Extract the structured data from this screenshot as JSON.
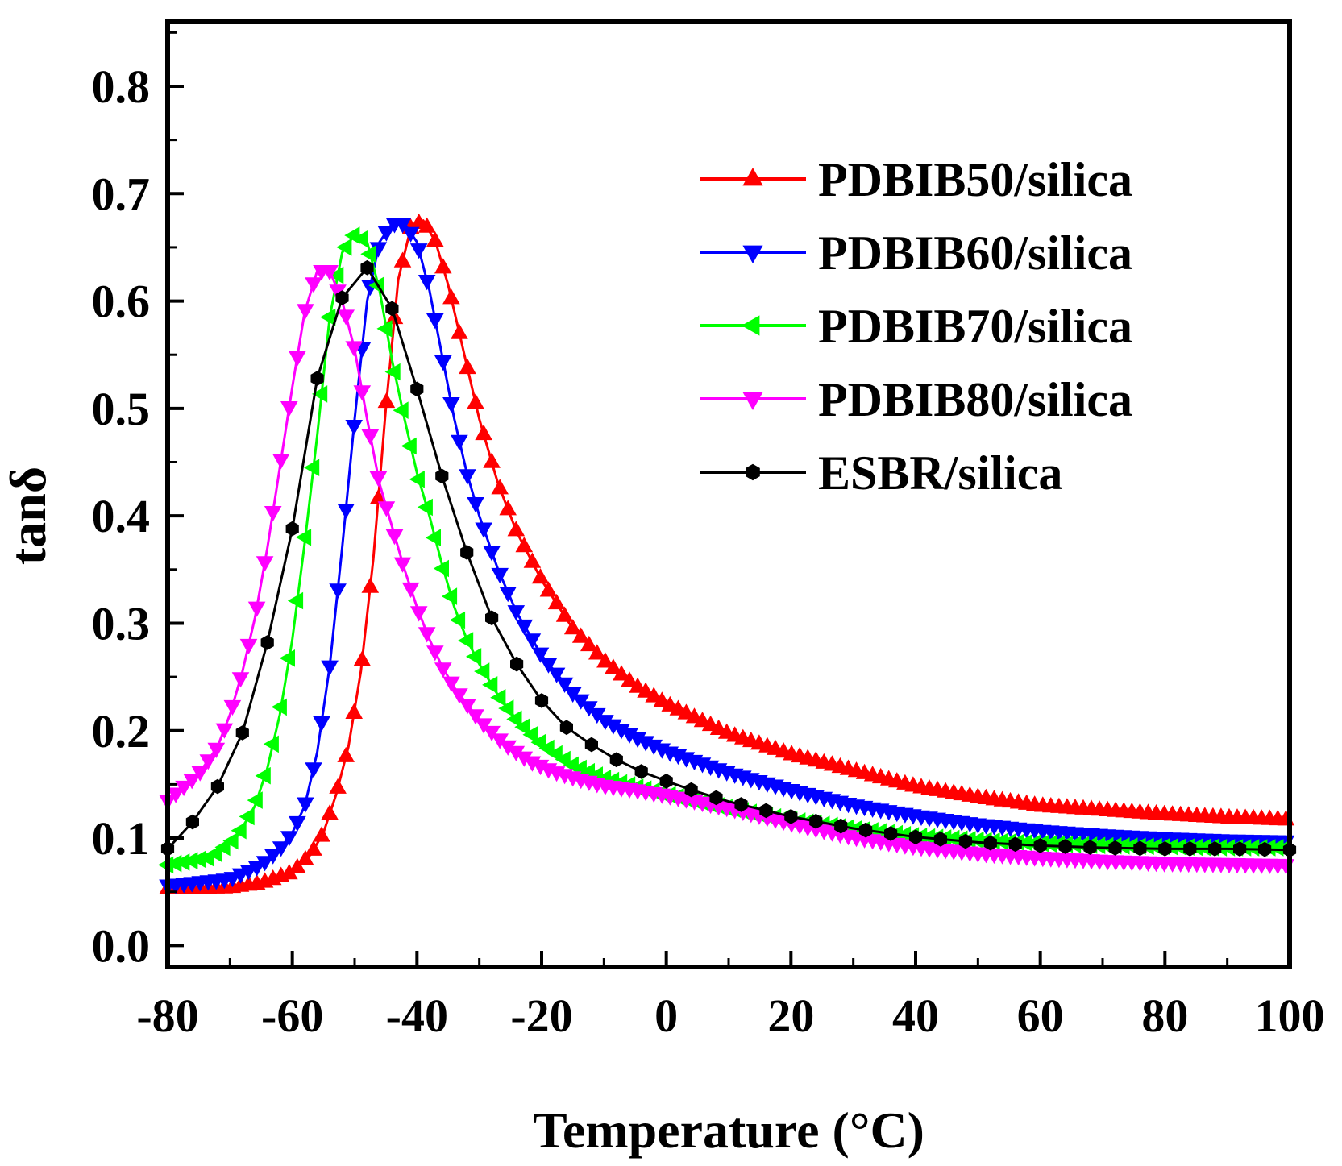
{
  "chart_data": {
    "type": "line",
    "title": "",
    "xlabel": "Temperature (°C)",
    "ylabel": "tanδ",
    "xlim": [
      -80,
      100
    ],
    "ylim": [
      -0.02,
      0.86
    ],
    "xticks": [
      -80,
      -60,
      -40,
      -20,
      0,
      20,
      40,
      60,
      80,
      100
    ],
    "xtick_labels": [
      "-80",
      "-60",
      "-40",
      "-20",
      "0",
      "20",
      "40",
      "60",
      "80",
      "100"
    ],
    "yticks": [
      0.0,
      0.1,
      0.2,
      0.3,
      0.4,
      0.5,
      0.6,
      0.7,
      0.8
    ],
    "ytick_labels": [
      "0.0",
      "0.1",
      "0.2",
      "0.3",
      "0.4",
      "0.5",
      "0.6",
      "0.7",
      "0.8"
    ],
    "grid": false,
    "legend_position": "top-right",
    "series": [
      {
        "name": "PDBIB50/silica",
        "color": "#ff0000",
        "marker": "triangle-up",
        "x": [
          -80,
          -70,
          -65,
          -60,
          -57,
          -55,
          -53,
          -51,
          -49,
          -47,
          -45,
          -43,
          -41,
          -39,
          -37,
          -35,
          -33,
          -30,
          -27,
          -24,
          -20,
          -15,
          -10,
          -5,
          0,
          10,
          20,
          30,
          40,
          50,
          60,
          70,
          80,
          90,
          100
        ],
        "y": [
          0.053,
          0.054,
          0.058,
          0.068,
          0.085,
          0.105,
          0.14,
          0.185,
          0.255,
          0.36,
          0.5,
          0.62,
          0.668,
          0.675,
          0.655,
          0.615,
          0.565,
          0.49,
          0.43,
          0.385,
          0.34,
          0.295,
          0.265,
          0.242,
          0.225,
          0.197,
          0.178,
          0.163,
          0.148,
          0.138,
          0.13,
          0.126,
          0.122,
          0.119,
          0.117
        ]
      },
      {
        "name": "PDBIB60/silica",
        "color": "#0000ff",
        "marker": "triangle-down",
        "x": [
          -80,
          -70,
          -65,
          -62,
          -60,
          -58,
          -56,
          -54,
          -52,
          -50,
          -48,
          -46,
          -44,
          -42,
          -40,
          -38,
          -36,
          -34,
          -32,
          -30,
          -27,
          -24,
          -20,
          -15,
          -10,
          -5,
          0,
          10,
          20,
          30,
          40,
          50,
          60,
          70,
          80,
          90,
          100
        ],
        "y": [
          0.056,
          0.062,
          0.075,
          0.09,
          0.105,
          0.13,
          0.18,
          0.26,
          0.37,
          0.49,
          0.6,
          0.655,
          0.672,
          0.672,
          0.655,
          0.61,
          0.55,
          0.49,
          0.44,
          0.4,
          0.35,
          0.31,
          0.27,
          0.235,
          0.21,
          0.194,
          0.181,
          0.161,
          0.145,
          0.131,
          0.121,
          0.113,
          0.107,
          0.103,
          0.1,
          0.098,
          0.097
        ]
      },
      {
        "name": "PDBIB70/silica",
        "color": "#00ff00",
        "marker": "triangle-left",
        "x": [
          -80,
          -73,
          -69,
          -66,
          -64,
          -62,
          -60,
          -58,
          -56,
          -54,
          -52,
          -50,
          -48,
          -46,
          -44,
          -42,
          -40,
          -38,
          -36,
          -34,
          -32,
          -30,
          -27,
          -24,
          -20,
          -15,
          -10,
          -5,
          0,
          10,
          20,
          30,
          40,
          50,
          60,
          70,
          80,
          90,
          100
        ],
        "y": [
          0.075,
          0.082,
          0.1,
          0.13,
          0.165,
          0.215,
          0.285,
          0.375,
          0.475,
          0.585,
          0.645,
          0.662,
          0.655,
          0.61,
          0.545,
          0.49,
          0.44,
          0.4,
          0.355,
          0.315,
          0.285,
          0.262,
          0.233,
          0.21,
          0.188,
          0.168,
          0.156,
          0.148,
          0.141,
          0.128,
          0.117,
          0.109,
          0.102,
          0.098,
          0.095,
          0.093,
          0.092,
          0.091,
          0.091
        ]
      },
      {
        "name": "PDBIB80/silica",
        "color": "#ff00ff",
        "marker": "triangle-down",
        "x": [
          -80,
          -75,
          -72,
          -70,
          -68,
          -66,
          -64,
          -62,
          -60,
          -58,
          -56,
          -54,
          -52,
          -50,
          -48,
          -46,
          -44,
          -42,
          -40,
          -38,
          -36,
          -34,
          -30,
          -26,
          -22,
          -18,
          -14,
          -10,
          -5,
          0,
          10,
          20,
          30,
          40,
          50,
          60,
          70,
          80,
          90,
          100
        ],
        "y": [
          0.135,
          0.16,
          0.185,
          0.215,
          0.255,
          0.305,
          0.37,
          0.445,
          0.52,
          0.59,
          0.628,
          0.628,
          0.6,
          0.555,
          0.49,
          0.43,
          0.39,
          0.35,
          0.315,
          0.285,
          0.26,
          0.24,
          0.21,
          0.188,
          0.172,
          0.162,
          0.155,
          0.149,
          0.145,
          0.14,
          0.128,
          0.114,
          0.101,
          0.092,
          0.086,
          0.082,
          0.079,
          0.077,
          0.076,
          0.075
        ]
      },
      {
        "name": "ESBR/silica",
        "color": "#000000",
        "marker": "hexagon",
        "x": [
          -80,
          -76,
          -72,
          -68,
          -64,
          -60,
          -56,
          -52,
          -48,
          -44,
          -40,
          -36,
          -32,
          -28,
          -24,
          -20,
          -16,
          -12,
          -8,
          -4,
          0,
          5,
          10,
          20,
          30,
          40,
          50,
          60,
          70,
          80,
          90,
          100
        ],
        "y": [
          0.09,
          0.115,
          0.148,
          0.198,
          0.282,
          0.388,
          0.528,
          0.603,
          0.631,
          0.593,
          0.518,
          0.437,
          0.366,
          0.305,
          0.262,
          0.228,
          0.203,
          0.187,
          0.173,
          0.162,
          0.153,
          0.143,
          0.134,
          0.12,
          0.109,
          0.101,
          0.096,
          0.093,
          0.091,
          0.09,
          0.09,
          0.089
        ]
      }
    ]
  }
}
